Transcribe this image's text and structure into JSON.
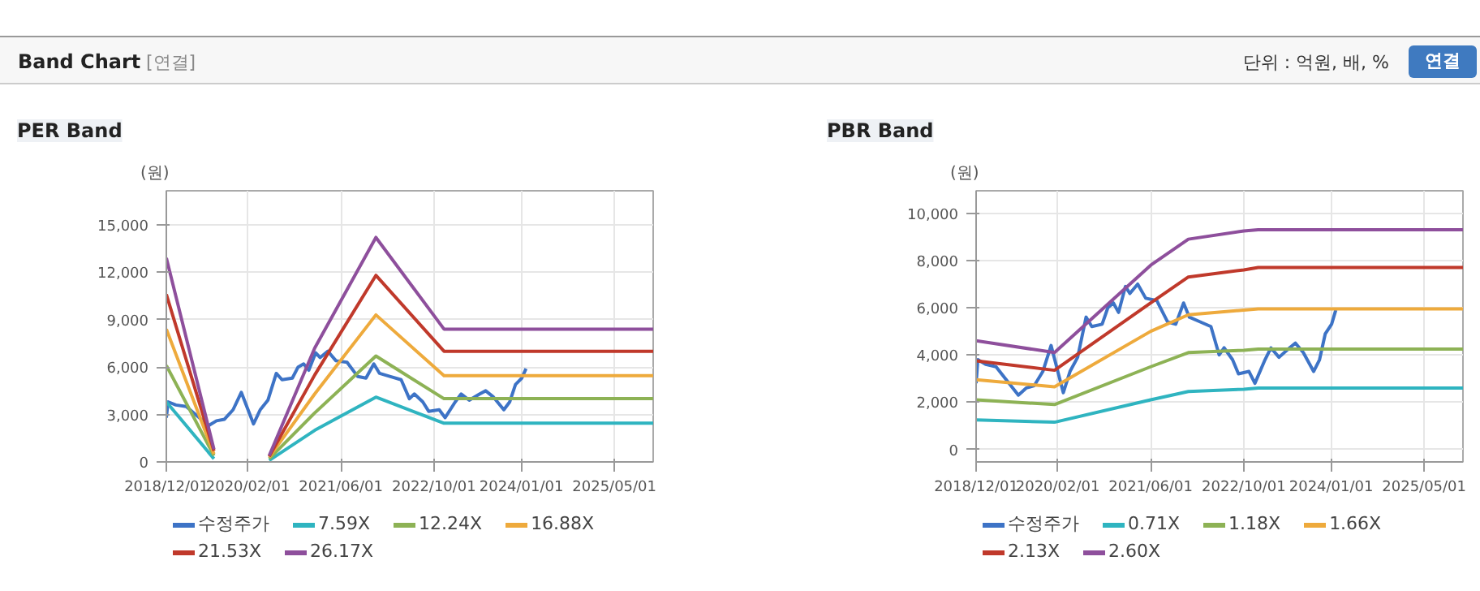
{
  "chart_data": [
    {
      "type": "line",
      "title": "PER Band",
      "ylabel": "(원)",
      "annotations": [
        "Band Chart",
        "[연결]",
        "단위 : 억원, 배, %",
        "연결"
      ],
      "xlim": [
        "2018-12-01",
        "2025-11-20"
      ],
      "ylim": [
        0,
        17150
      ],
      "yticks": [
        {
          "value": 0,
          "label": "0"
        },
        {
          "value": 3000,
          "label": "3,000"
        },
        {
          "value": 6000,
          "label": "6,000"
        },
        {
          "value": 9000,
          "label": "9,000"
        },
        {
          "value": 12000,
          "label": "12,000"
        },
        {
          "value": 15000,
          "label": "15,000"
        }
      ],
      "xticks": [
        {
          "value": "2018-12-01",
          "label": "2018/12/01"
        },
        {
          "value": "2020-02-01",
          "label": "2020/02/01"
        },
        {
          "value": "2021-06-01",
          "label": "2021/06/01"
        },
        {
          "value": "2022-10-01",
          "label": "2022/10/01"
        },
        {
          "value": "2024-01-01",
          "label": "2024/01/01"
        },
        {
          "value": "2025-05-01",
          "label": "2025/05/01"
        }
      ],
      "grid": true,
      "legend": "bottom",
      "series": [
        {
          "name": "수정주가",
          "color": "#3d73c6",
          "x": [
            "2018-12-01",
            "2018-12-10",
            "2019-01-20",
            "2019-03-15",
            "2019-07-10",
            "2019-08-20",
            "2019-10-01",
            "2019-11-15",
            "2019-12-28",
            "2020-03-01",
            "2020-04-05",
            "2020-05-15",
            "2020-06-28",
            "2020-07-28",
            "2020-09-20",
            "2020-10-20",
            "2020-11-18",
            "2020-12-15",
            "2021-01-20",
            "2021-02-12",
            "2021-03-25",
            "2021-05-06",
            "2021-07-03",
            "2021-08-28",
            "2021-10-10",
            "2021-11-20",
            "2021-12-20",
            "2022-02-15",
            "2022-04-12",
            "2022-05-25",
            "2022-06-20",
            "2022-08-03",
            "2022-09-03",
            "2022-10-28",
            "2022-11-28",
            "2023-01-20",
            "2023-02-20",
            "2023-04-03",
            "2023-05-28",
            "2023-06-28",
            "2023-08-08",
            "2023-10-01",
            "2023-11-01",
            "2023-12-01",
            "2024-01-03",
            "2024-01-25"
          ],
          "values": [
            2800,
            3800,
            3600,
            3500,
            2300,
            2600,
            2700,
            3300,
            4400,
            2400,
            3300,
            3900,
            5600,
            5200,
            5300,
            6000,
            6200,
            5800,
            6900,
            6600,
            7000,
            6400,
            6300,
            5400,
            5300,
            6200,
            5600,
            5400,
            5200,
            4000,
            4300,
            3800,
            3200,
            3300,
            2800,
            3800,
            4300,
            3900,
            4300,
            4500,
            4100,
            3300,
            3800,
            4900,
            5300,
            5900
          ]
        },
        {
          "name": "7.59X",
          "color": "#2fb4c0",
          "x": [
            "2018-12-01",
            "2019-08-07",
            "2020-01-01",
            "2020-05-22",
            "2021-01-15",
            "2021-12-01",
            "2022-11-22",
            "2025-11-20"
          ],
          "values": [
            3800,
            200,
            null,
            100,
            2000,
            4100,
            2450,
            2450
          ]
        },
        {
          "name": "12.24X",
          "color": "#8db255",
          "x": [
            "2018-12-01",
            "2019-08-07",
            "2020-01-01",
            "2020-05-22",
            "2021-01-15",
            "2021-12-01",
            "2022-11-22",
            "2025-11-20"
          ],
          "values": [
            6100,
            400,
            null,
            200,
            3100,
            6700,
            4000,
            4000
          ]
        },
        {
          "name": "16.88X",
          "color": "#eeaa3c",
          "x": [
            "2018-12-01",
            "2019-08-07",
            "2020-01-01",
            "2020-05-22",
            "2021-01-15",
            "2021-12-01",
            "2022-11-22",
            "2025-11-20"
          ],
          "values": [
            8400,
            500,
            null,
            300,
            4300,
            9300,
            5450,
            5450
          ]
        },
        {
          "name": "21.53X",
          "color": "#c0392b",
          "x": [
            "2018-12-01",
            "2019-08-07",
            "2020-01-01",
            "2020-05-22",
            "2021-01-15",
            "2021-12-01",
            "2022-11-22",
            "2025-11-20"
          ],
          "values": [
            10600,
            700,
            null,
            350,
            5500,
            11800,
            7000,
            7000
          ]
        },
        {
          "name": "26.17X",
          "color": "#8e4f9c",
          "x": [
            "2018-12-01",
            "2019-08-07",
            "2020-01-01",
            "2020-05-22",
            "2021-01-15",
            "2021-12-01",
            "2022-11-22",
            "2025-11-20"
          ],
          "values": [
            12900,
            800,
            null,
            400,
            7200,
            14200,
            8400,
            8400
          ]
        }
      ]
    },
    {
      "type": "line",
      "title": "PBR Band",
      "ylabel": "(원)",
      "xlim": [
        "2018-12-01",
        "2025-11-20"
      ],
      "ylim": [
        -530,
        10950
      ],
      "yticks": [
        {
          "value": 0,
          "label": "0"
        },
        {
          "value": 2000,
          "label": "2,000"
        },
        {
          "value": 4000,
          "label": "4,000"
        },
        {
          "value": 6000,
          "label": "6,000"
        },
        {
          "value": 8000,
          "label": "8,000"
        },
        {
          "value": 10000,
          "label": "10,000"
        }
      ],
      "xticks": [
        {
          "value": "2018-12-01",
          "label": "2018/12/01"
        },
        {
          "value": "2020-02-01",
          "label": "2020/02/01"
        },
        {
          "value": "2021-06-01",
          "label": "2021/06/01"
        },
        {
          "value": "2022-10-01",
          "label": "2022/10/01"
        },
        {
          "value": "2024-01-01",
          "label": "2024/01/01"
        },
        {
          "value": "2025-05-01",
          "label": "2025/05/01"
        }
      ],
      "grid": true,
      "legend": "bottom",
      "series": [
        {
          "name": "수정주가",
          "color": "#3d73c6",
          "x": [
            "2018-12-01",
            "2018-12-10",
            "2019-01-20",
            "2019-03-15",
            "2019-07-10",
            "2019-08-20",
            "2019-10-01",
            "2019-11-15",
            "2019-12-28",
            "2020-03-01",
            "2020-04-05",
            "2020-05-15",
            "2020-06-28",
            "2020-07-28",
            "2020-09-20",
            "2020-10-20",
            "2020-11-18",
            "2020-12-15",
            "2021-01-20",
            "2021-02-12",
            "2021-03-25",
            "2021-05-06",
            "2021-07-03",
            "2021-08-28",
            "2021-10-10",
            "2021-11-20",
            "2021-12-20",
            "2022-02-15",
            "2022-04-12",
            "2022-05-25",
            "2022-06-20",
            "2022-08-03",
            "2022-09-03",
            "2022-10-28",
            "2022-11-28",
            "2023-01-20",
            "2023-02-20",
            "2023-04-03",
            "2023-05-28",
            "2023-06-28",
            "2023-08-08",
            "2023-10-01",
            "2023-11-01",
            "2023-12-01",
            "2024-01-03",
            "2024-01-25"
          ],
          "values": [
            2800,
            3800,
            3600,
            3500,
            2300,
            2600,
            2700,
            3300,
            4400,
            2400,
            3300,
            3900,
            5600,
            5200,
            5300,
            6000,
            6200,
            5800,
            6900,
            6600,
            7000,
            6400,
            6300,
            5400,
            5300,
            6200,
            5600,
            5400,
            5200,
            4000,
            4300,
            3800,
            3200,
            3300,
            2800,
            3800,
            4300,
            3900,
            4300,
            4500,
            4100,
            3300,
            3800,
            4900,
            5300,
            5900
          ]
        },
        {
          "name": "0.71X",
          "color": "#2fb4c0",
          "x": [
            "2018-12-01",
            "2020-01-15",
            "2021-06-01",
            "2021-12-15",
            "2022-10-01",
            "2022-12-15",
            "2025-11-20"
          ],
          "values": [
            1250,
            1150,
            2100,
            2450,
            2550,
            2600,
            2600
          ]
        },
        {
          "name": "1.18X",
          "color": "#8db255",
          "x": [
            "2018-12-01",
            "2020-01-15",
            "2021-06-01",
            "2021-12-15",
            "2022-10-01",
            "2022-12-15",
            "2025-11-20"
          ],
          "values": [
            2100,
            1900,
            3500,
            4100,
            4200,
            4250,
            4250
          ]
        },
        {
          "name": "1.66X",
          "color": "#eeaa3c",
          "x": [
            "2018-12-01",
            "2020-01-15",
            "2021-06-01",
            "2021-12-15",
            "2022-10-01",
            "2022-12-15",
            "2025-11-20"
          ],
          "values": [
            2950,
            2650,
            5000,
            5700,
            5900,
            5950,
            5950
          ]
        },
        {
          "name": "2.13X",
          "color": "#c0392b",
          "x": [
            "2018-12-01",
            "2020-01-15",
            "2021-06-01",
            "2021-12-15",
            "2022-10-01",
            "2022-12-15",
            "2025-11-20"
          ],
          "values": [
            3750,
            3350,
            6200,
            7300,
            7600,
            7700,
            7700
          ]
        },
        {
          "name": "2.60X",
          "color": "#8e4f9c",
          "x": [
            "2018-12-01",
            "2020-01-15",
            "2021-06-01",
            "2021-12-15",
            "2022-10-01",
            "2022-12-15",
            "2025-11-20"
          ],
          "values": [
            4600,
            4100,
            7800,
            8900,
            9250,
            9300,
            9300
          ]
        }
      ]
    }
  ]
}
